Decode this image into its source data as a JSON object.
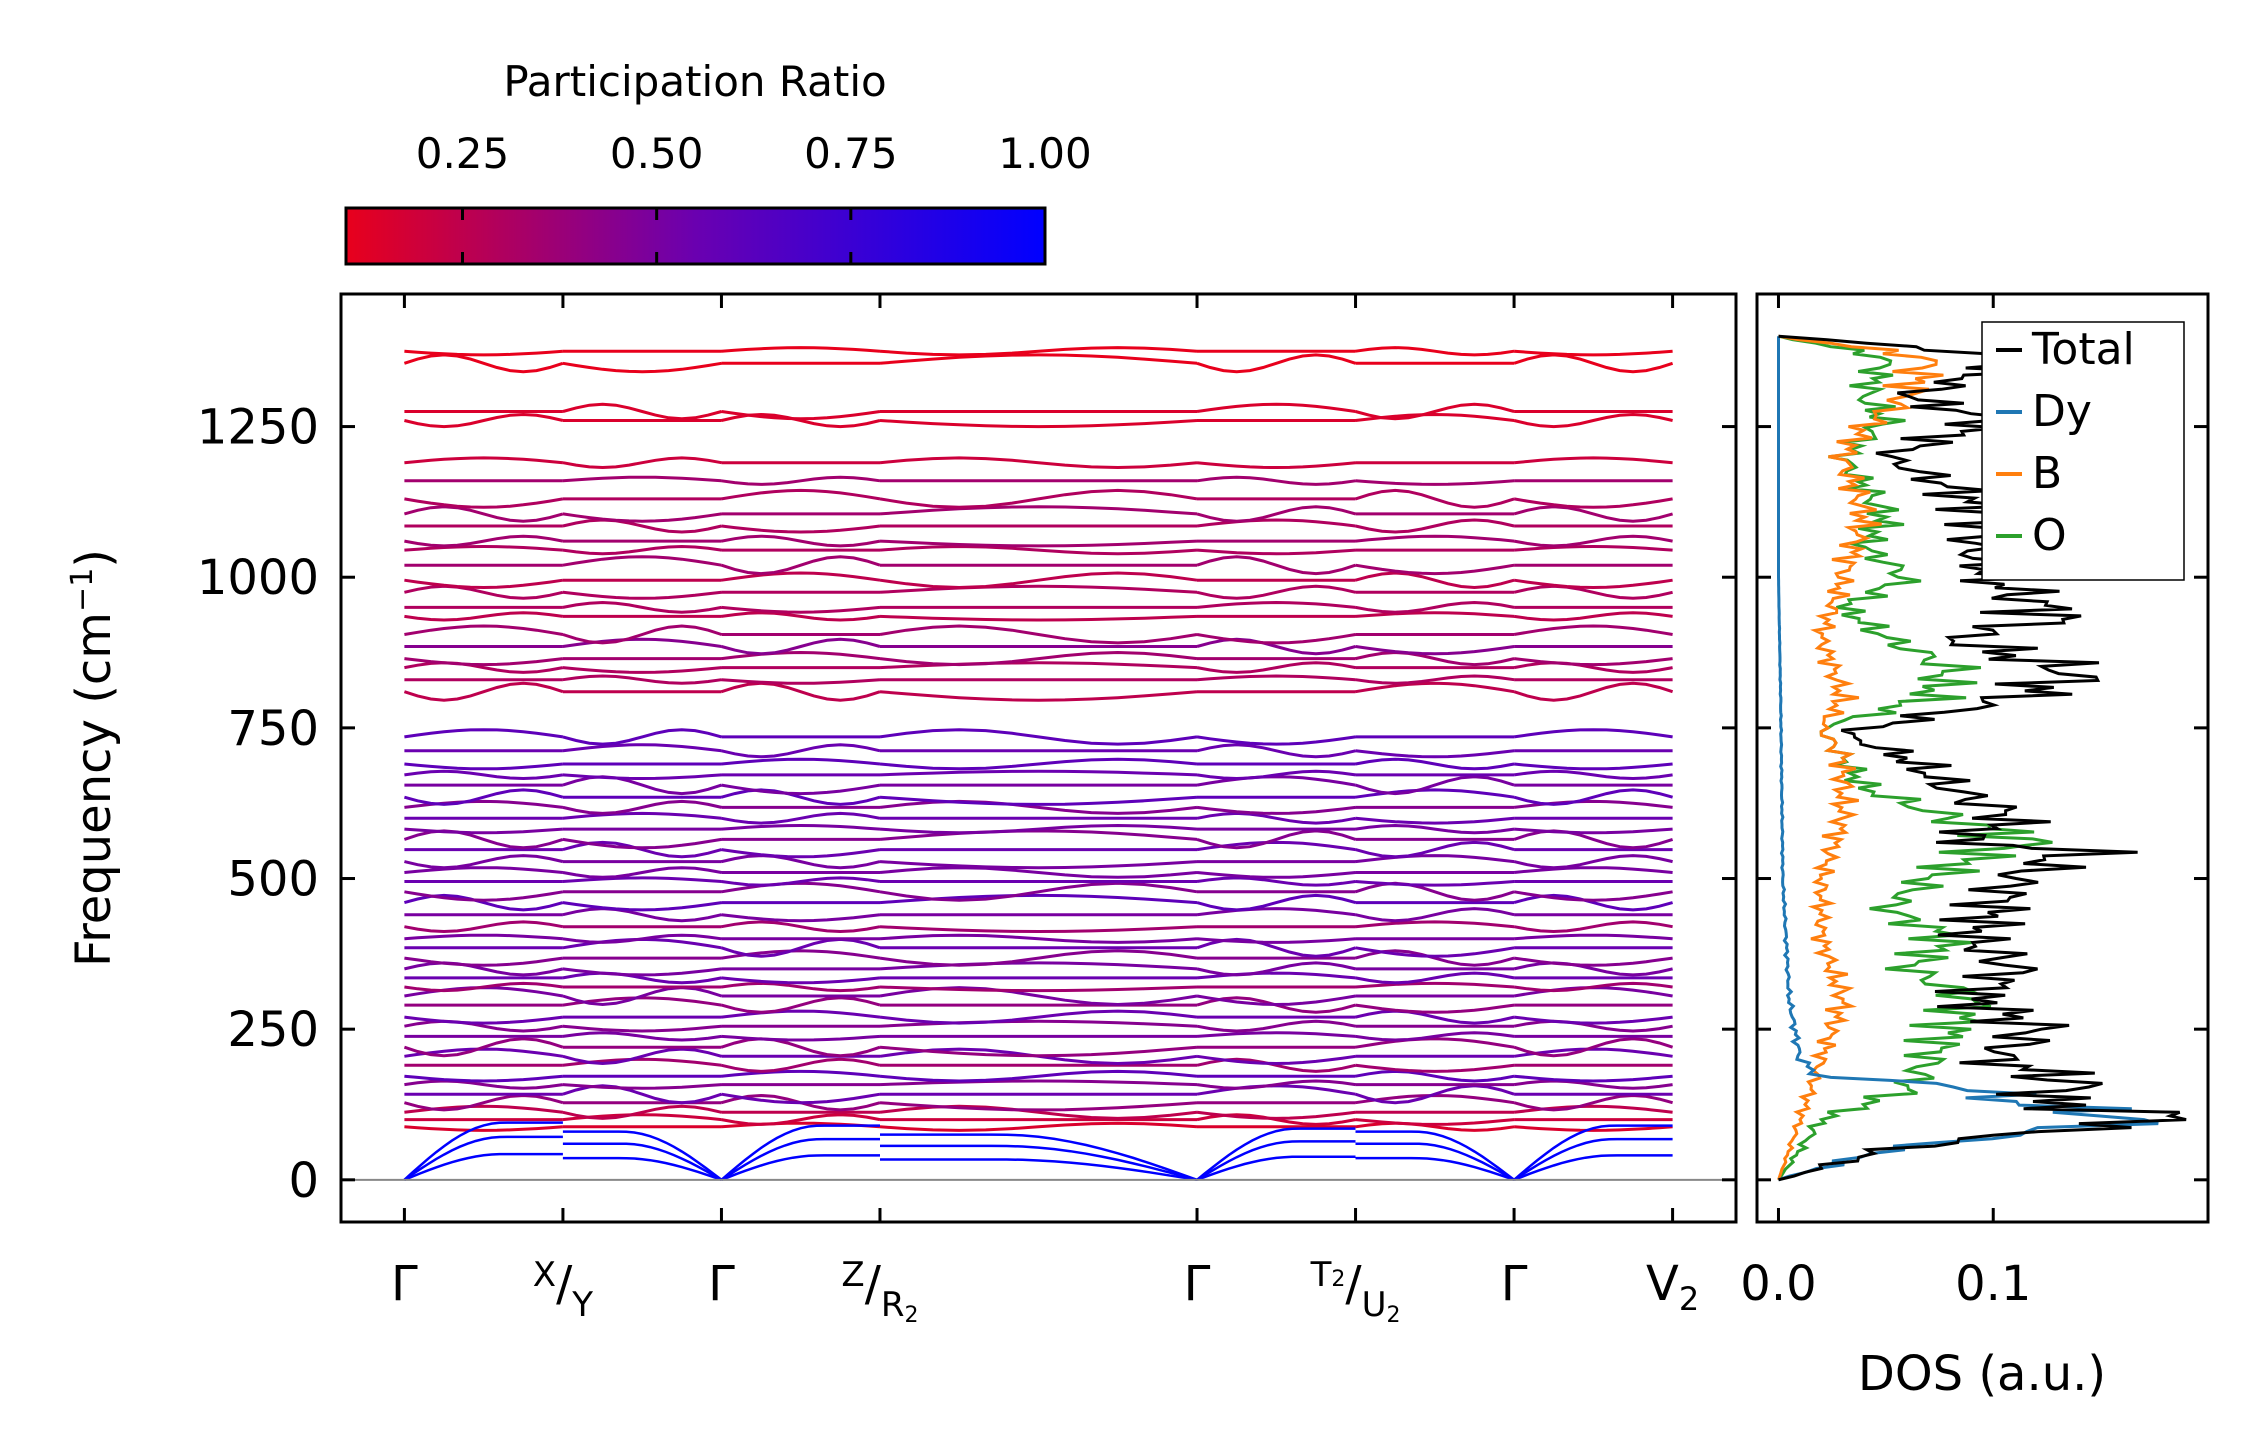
{
  "chart_data": [
    {
      "type": "line",
      "name": "phonon-dispersion",
      "ylabel": "Frequency (cm",
      "ylabel_sup": "−1",
      "ylabel_close": ")",
      "ylim": [
        -70,
        1470
      ],
      "yticks": [
        0,
        250,
        500,
        750,
        1000,
        1250
      ],
      "ytick_labels": [
        "0",
        "250",
        "500",
        "750",
        "1000",
        "1250"
      ],
      "x_segments": [
        [
          0,
          1
        ],
        [
          1,
          2
        ],
        [
          2,
          3
        ],
        [
          3,
          5
        ],
        [
          5,
          6
        ],
        [
          6,
          7
        ],
        [
          7,
          8
        ]
      ],
      "xticks": [
        {
          "pos": 0,
          "label": "Γ"
        },
        {
          "pos": 1,
          "label": "X",
          "label2": "Y",
          "sup1": true
        },
        {
          "pos": 2,
          "label": "Γ"
        },
        {
          "pos": 3,
          "label": "Z",
          "label2": "R",
          "sub2": "2",
          "sup1": true
        },
        {
          "pos": 5,
          "label": "Γ"
        },
        {
          "pos": 6,
          "label": "T",
          "sub1": "2",
          "label2": "U",
          "sub2": "2",
          "sup1": true
        },
        {
          "pos": 7,
          "label": "Γ"
        },
        {
          "pos": 8,
          "label": "V",
          "sub1": "2"
        }
      ],
      "xlim": [
        -0.4,
        8.4
      ],
      "zero_line": 0,
      "acoustic_max_frequency": [
        95,
        80,
        90,
        75,
        85,
        80,
        90
      ],
      "band_frequencies": [
        88,
        100,
        112,
        128,
        142,
        158,
        172,
        190,
        205,
        220,
        238,
        255,
        270,
        290,
        305,
        320,
        335,
        350,
        368,
        385,
        400,
        420,
        440,
        460,
        478,
        495,
        510,
        528,
        548,
        565,
        582,
        600,
        618,
        635,
        655,
        672,
        690,
        712,
        735,
        810,
        830,
        850,
        865,
        885,
        905,
        935,
        950,
        975,
        995,
        1020,
        1045,
        1060,
        1085,
        1105,
        1130,
        1160,
        1190,
        1260,
        1275,
        1355,
        1375
      ],
      "band_participation_ratio": [
        0.15,
        0.2,
        0.25,
        0.4,
        0.55,
        0.45,
        0.6,
        0.35,
        0.55,
        0.4,
        0.5,
        0.45,
        0.55,
        0.4,
        0.5,
        0.35,
        0.55,
        0.5,
        0.45,
        0.55,
        0.5,
        0.35,
        0.5,
        0.6,
        0.45,
        0.55,
        0.5,
        0.5,
        0.55,
        0.45,
        0.5,
        0.55,
        0.45,
        0.6,
        0.5,
        0.55,
        0.6,
        0.55,
        0.6,
        0.25,
        0.3,
        0.3,
        0.35,
        0.45,
        0.35,
        0.25,
        0.3,
        0.3,
        0.25,
        0.35,
        0.3,
        0.35,
        0.3,
        0.35,
        0.3,
        0.35,
        0.2,
        0.15,
        0.15,
        0.1,
        0.1
      ]
    },
    {
      "type": "line",
      "name": "density-of-states",
      "xlabel": "DOS (a.u.)",
      "xlim": [
        -0.01,
        0.2
      ],
      "xticks": [
        0.0,
        0.1
      ],
      "xtick_labels": [
        "0.0",
        "0.1"
      ],
      "ylim": [
        -70,
        1470
      ],
      "series": [
        {
          "name": "Total",
          "color": "#000000",
          "frequency": [
            0,
            50,
            80,
            100,
            130,
            160,
            200,
            250,
            300,
            350,
            400,
            450,
            500,
            550,
            560,
            600,
            650,
            700,
            740,
            800,
            840,
            900,
            930,
            1000,
            1050,
            1100,
            1150,
            1200,
            1260,
            1300,
            1365,
            1400
          ],
          "values": [
            0,
            0.05,
            0.12,
            0.19,
            0.12,
            0.14,
            0.1,
            0.12,
            0.09,
            0.11,
            0.09,
            0.1,
            0.11,
            0.14,
            0.08,
            0.11,
            0.08,
            0.06,
            0.03,
            0.11,
            0.14,
            0.08,
            0.13,
            0.1,
            0.09,
            0.1,
            0.08,
            0.05,
            0.1,
            0.06,
            0.12,
            0.0
          ]
        },
        {
          "name": "Dy",
          "color": "#1f77b4",
          "frequency": [
            0,
            50,
            80,
            100,
            130,
            160,
            170,
            200,
            300,
            500,
            800,
            1000,
            1400
          ],
          "values": [
            0,
            0.05,
            0.12,
            0.17,
            0.11,
            0.08,
            0.02,
            0.01,
            0.005,
            0.002,
            0.001,
            0.0,
            0.0
          ]
        },
        {
          "name": "B",
          "color": "#ff7f0e",
          "frequency": [
            0,
            100,
            150,
            200,
            300,
            400,
            500,
            600,
            700,
            750,
            800,
            900,
            1000,
            1100,
            1200,
            1250,
            1300,
            1365,
            1400
          ],
          "values": [
            0,
            0.01,
            0.015,
            0.02,
            0.03,
            0.02,
            0.02,
            0.03,
            0.03,
            0.02,
            0.03,
            0.02,
            0.03,
            0.04,
            0.03,
            0.04,
            0.06,
            0.07,
            0.0
          ]
        },
        {
          "name": "O",
          "color": "#2ca02c",
          "frequency": [
            0,
            100,
            150,
            200,
            250,
            300,
            350,
            400,
            450,
            500,
            550,
            560,
            600,
            650,
            700,
            750,
            800,
            850,
            900,
            950,
            1000,
            1050,
            1100,
            1200,
            1260,
            1300,
            1365,
            1400
          ],
          "values": [
            0,
            0.02,
            0.06,
            0.07,
            0.08,
            0.09,
            0.06,
            0.08,
            0.05,
            0.07,
            0.1,
            0.12,
            0.08,
            0.04,
            0.03,
            0.02,
            0.07,
            0.08,
            0.05,
            0.03,
            0.06,
            0.04,
            0.05,
            0.03,
            0.05,
            0.04,
            0.05,
            0.0
          ]
        }
      ],
      "legend_position": "top-right"
    },
    {
      "type": "colorbar",
      "name": "participation-ratio-colorbar",
      "title": "Participation Ratio",
      "range": [
        0.1,
        1.0
      ],
      "ticks": [
        0.25,
        0.5,
        0.75,
        1.0
      ],
      "tick_labels": [
        "0.25",
        "0.50",
        "0.75",
        "1.00"
      ],
      "color_low": "#e8001c",
      "color_mid": "#6a00b0",
      "color_high": "#0000ff"
    }
  ]
}
